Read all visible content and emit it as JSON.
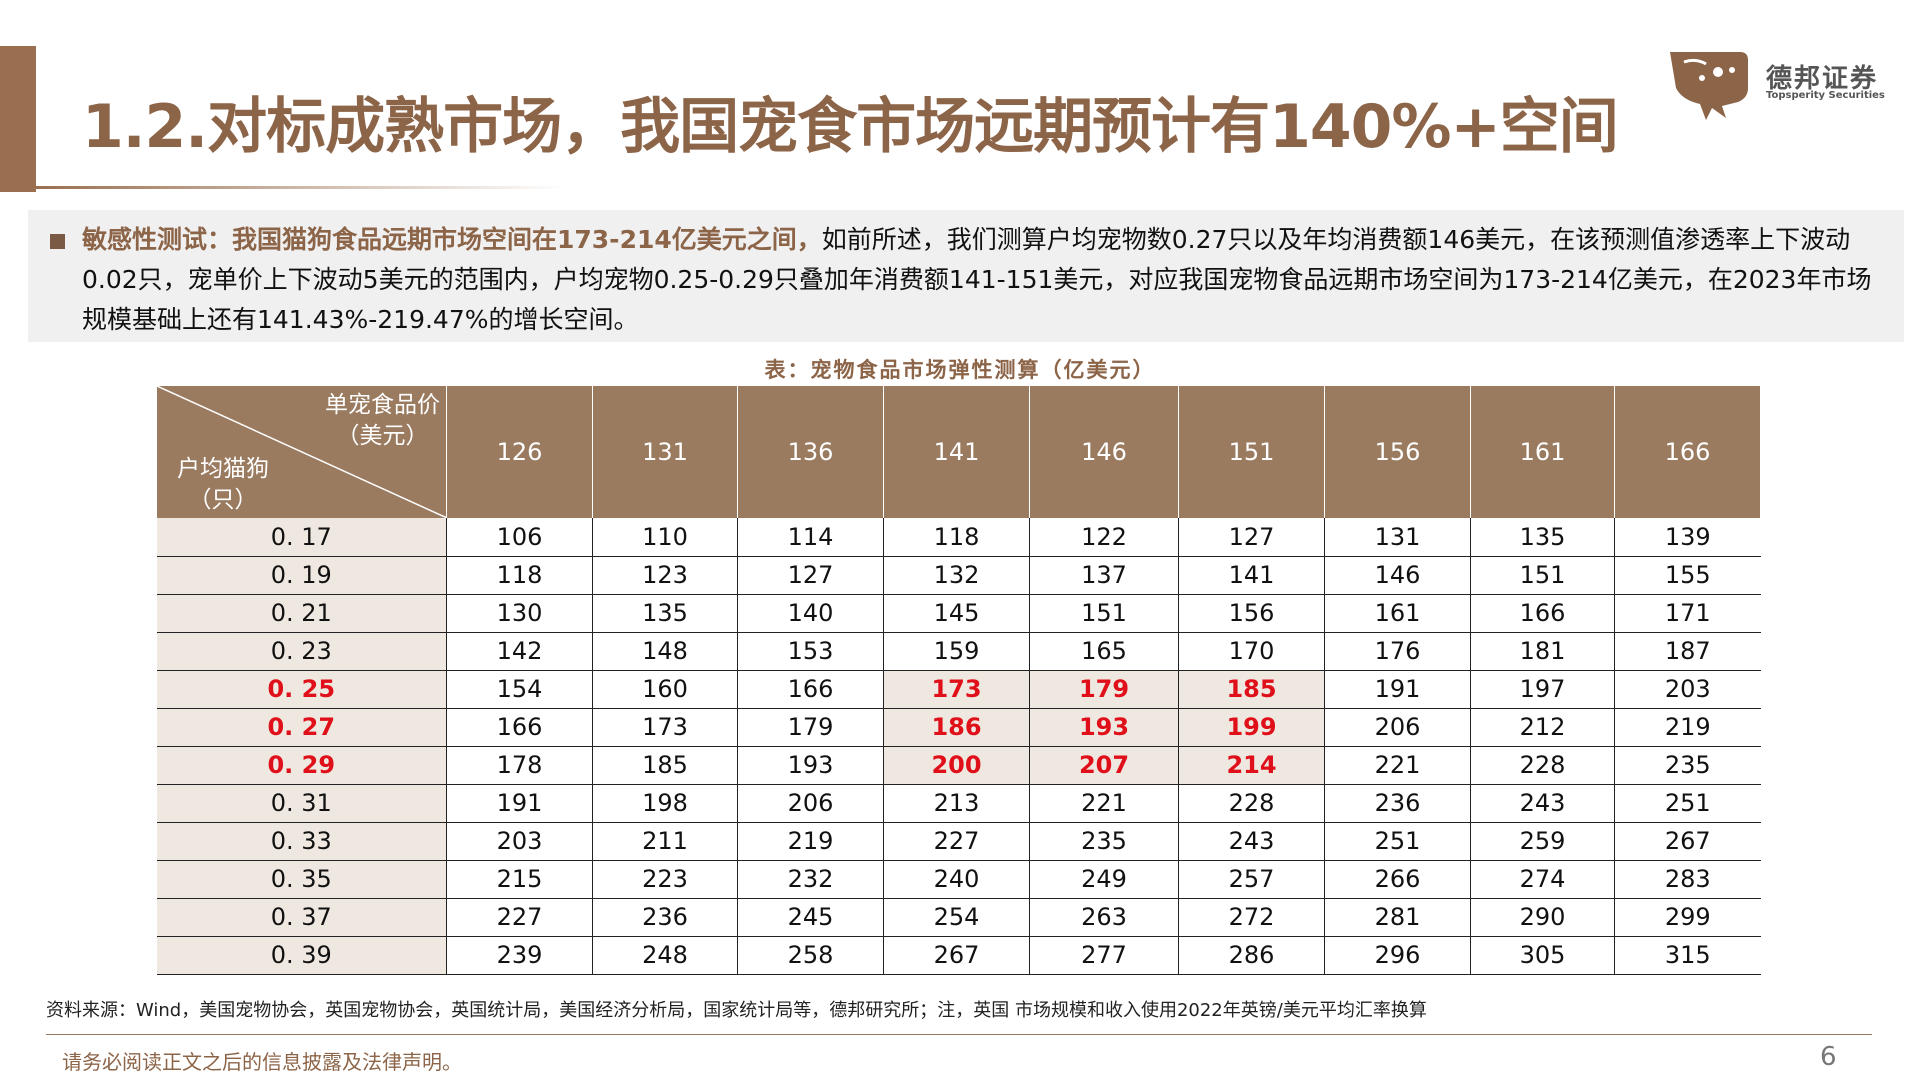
{
  "title": "1.2.对标成熟市场，我国宠食市场远期预计有140%+空间",
  "brand": {
    "name_cn": "德邦证券",
    "name_en": "Topsperity Securities"
  },
  "summary": {
    "highlight": "敏感性测试：我国猫狗食品远期市场空间在173-214亿美元之间，",
    "text": "如前所述，我们测算户均宠物数0.27只以及年均消费额146美元，在该预测值渗透率上下波动0.02只，宠单价上下波动5美元的范围内，户均宠物0.25-0.29只叠加年消费额141-151美元，对应我国宠物食品远期市场空间为173-214亿美元，在2023年市场规模基础上还有141.43%-219.47%的增长空间。"
  },
  "table": {
    "caption": "表：宠物食品市场弹性测算（亿美元）",
    "corner_top_line1": "单宠食品价",
    "corner_top_line2": "（美元）",
    "corner_bottom_line1": "户均猫狗",
    "corner_bottom_line2": "（只）",
    "columns": [
      "126",
      "131",
      "136",
      "141",
      "146",
      "151",
      "156",
      "161",
      "166"
    ],
    "rows": [
      {
        "label": "0. 17",
        "values": [
          "106",
          "110",
          "114",
          "118",
          "122",
          "127",
          "131",
          "135",
          "139"
        ]
      },
      {
        "label": "0. 19",
        "values": [
          "118",
          "123",
          "127",
          "132",
          "137",
          "141",
          "146",
          "151",
          "155"
        ]
      },
      {
        "label": "0. 21",
        "values": [
          "130",
          "135",
          "140",
          "145",
          "151",
          "156",
          "161",
          "166",
          "171"
        ]
      },
      {
        "label": "0. 23",
        "values": [
          "142",
          "148",
          "153",
          "159",
          "165",
          "170",
          "176",
          "181",
          "187"
        ]
      },
      {
        "label": "0. 25",
        "values": [
          "154",
          "160",
          "166",
          "173",
          "179",
          "185",
          "191",
          "197",
          "203"
        ]
      },
      {
        "label": "0. 27",
        "values": [
          "166",
          "173",
          "179",
          "186",
          "193",
          "199",
          "206",
          "212",
          "219"
        ]
      },
      {
        "label": "0. 29",
        "values": [
          "178",
          "185",
          "193",
          "200",
          "207",
          "214",
          "221",
          "228",
          "235"
        ]
      },
      {
        "label": "0. 31",
        "values": [
          "191",
          "198",
          "206",
          "213",
          "221",
          "228",
          "236",
          "243",
          "251"
        ]
      },
      {
        "label": "0. 33",
        "values": [
          "203",
          "211",
          "219",
          "227",
          "235",
          "243",
          "251",
          "259",
          "267"
        ]
      },
      {
        "label": "0. 35",
        "values": [
          "215",
          "223",
          "232",
          "240",
          "249",
          "257",
          "266",
          "274",
          "283"
        ]
      },
      {
        "label": "0. 37",
        "values": [
          "227",
          "236",
          "245",
          "254",
          "263",
          "272",
          "281",
          "290",
          "299"
        ]
      },
      {
        "label": "0. 39",
        "values": [
          "239",
          "248",
          "258",
          "267",
          "277",
          "286",
          "296",
          "305",
          "315"
        ]
      }
    ],
    "highlight_rows": [
      4,
      5,
      6
    ],
    "highlight_cols": [
      3,
      4,
      5
    ],
    "highlight_color": "#e0101a"
  },
  "source": "资料来源：Wind，美国宠物协会，英国宠物协会，英国统计局，美国经济分析局，国家统计局等，德邦研究所；注，英国 市场规模和收入使用2022年英镑/美元平均汇率换算",
  "footer": {
    "disclaimer": "请务必阅读正文之后的信息披露及法律声明。",
    "page": "6"
  },
  "colors": {
    "accent": "#8c6448",
    "header_bg": "#9a7b60",
    "cell_highlight_bg": "#efe8e0"
  }
}
